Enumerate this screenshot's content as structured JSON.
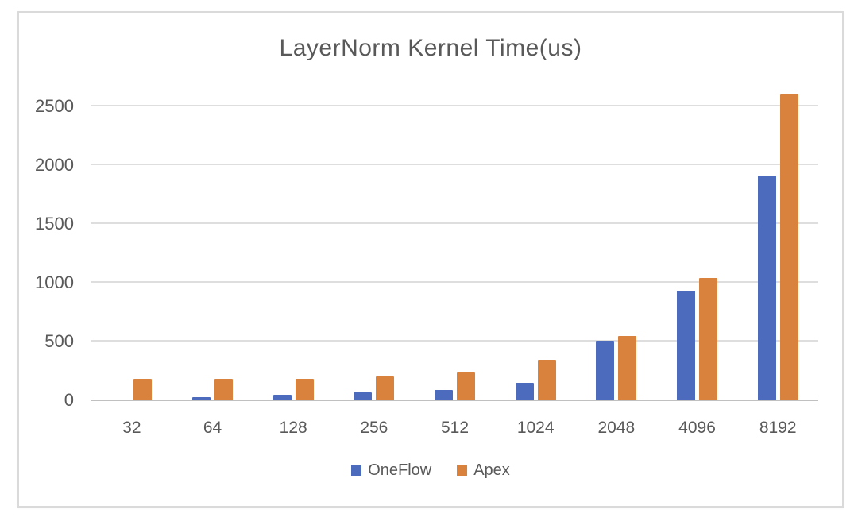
{
  "chart_data": {
    "type": "bar",
    "title": "LayerNorm Kernel Time(us)",
    "categories": [
      "32",
      "64",
      "128",
      "256",
      "512",
      "1024",
      "2048",
      "4096",
      "8192"
    ],
    "series": [
      {
        "name": "OneFlow",
        "color": "#4d6bbd",
        "values": [
          8,
          25,
          45,
          70,
          90,
          150,
          510,
          930,
          1910
        ]
      },
      {
        "name": "Apex",
        "color": "#d9823e",
        "values": [
          185,
          185,
          185,
          205,
          240,
          345,
          545,
          1040,
          2605
        ]
      }
    ],
    "xlabel": "",
    "ylabel": "",
    "ylim": [
      0,
      2500
    ],
    "yticks": [
      0,
      500,
      1000,
      1500,
      2000,
      2500
    ],
    "grid": true,
    "legend_position": "bottom"
  },
  "colors": {
    "text": "#595959",
    "gridline": "#dedede",
    "axis_line": "#c0c0c0",
    "frame_border": "#dadada",
    "background": "#ffffff"
  }
}
